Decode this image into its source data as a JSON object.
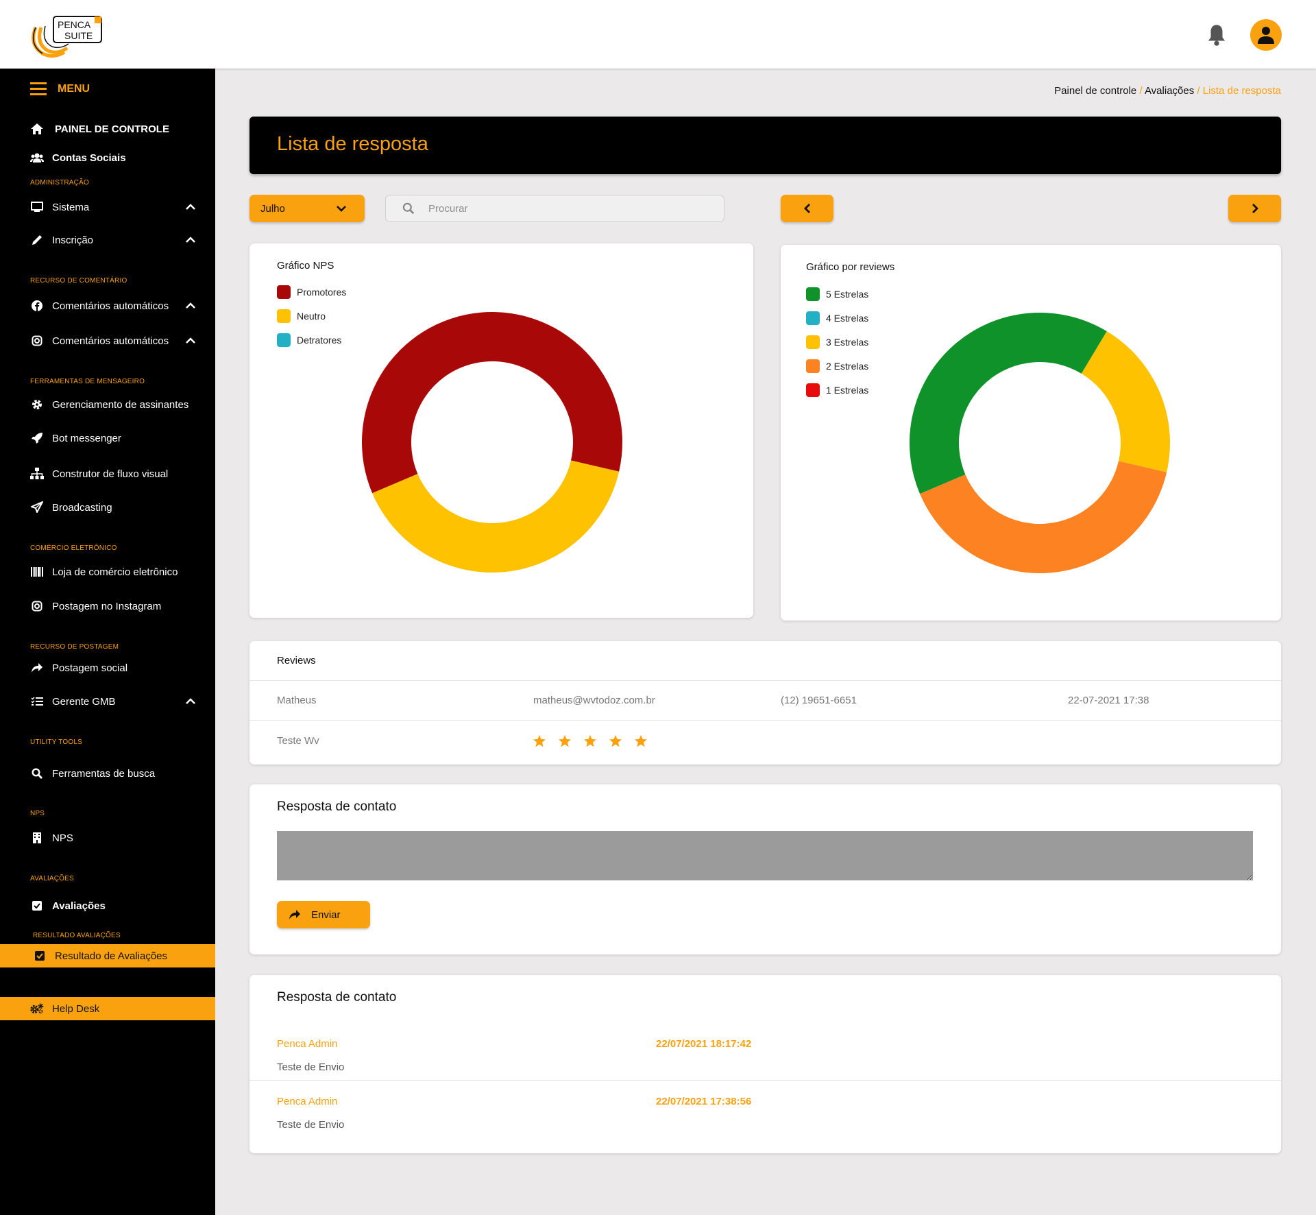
{
  "header": {
    "logo_text_top": "PENCA",
    "logo_text_bottom": "SUITE"
  },
  "sidebar": {
    "menu_label": "MENU",
    "items": [
      {
        "label": "PAINEL DE CONTROLE",
        "icon": "home-icon"
      },
      {
        "label": "Contas Sociais",
        "icon": "users-icon"
      },
      {
        "section": "ADMINISTRAÇÃO"
      },
      {
        "label": "Sistema",
        "icon": "monitor-icon"
      },
      {
        "label": "Inscrição",
        "icon": "pencil-icon"
      },
      {
        "section": "RECURSO DE COMENTÁRIO"
      },
      {
        "label": "Comentários automáticos",
        "icon": "facebook-icon"
      },
      {
        "label": "Comentários automáticos",
        "icon": "instagram-icon"
      },
      {
        "section": "FERRAMENTAS DE MENSAGEIRO"
      },
      {
        "label": "Gerenciamento de assinantes",
        "icon": "gear-icon"
      },
      {
        "label": "Bot messenger",
        "icon": "rocket-icon"
      },
      {
        "label": "Construtor de fluxo visual",
        "icon": "sitemap-icon"
      },
      {
        "label": "Broadcasting",
        "icon": "paper-plane-icon"
      },
      {
        "section": "COMÉRCIO ELETRÔNICO"
      },
      {
        "label": "Loja de comércio eletrônico",
        "icon": "barcode-icon"
      },
      {
        "label": "Postagem no Instagram",
        "icon": "instagram-icon"
      },
      {
        "section": "RECURSO DE POSTAGEM"
      },
      {
        "label": "Postagem social",
        "icon": "share-icon"
      },
      {
        "label": "Gerente GMB",
        "icon": "list-icon"
      },
      {
        "section": "UTILITY TOOLS"
      },
      {
        "label": "Ferramentas de busca",
        "icon": "search-icon"
      },
      {
        "section": "NPS"
      },
      {
        "label": "NPS",
        "icon": "building-icon"
      },
      {
        "section": "AVALIAÇÕES"
      },
      {
        "label": "Avaliações",
        "icon": "checkbox-icon"
      },
      {
        "section": "RESULTADO AVALIAÇÕES"
      },
      {
        "label": "Resultado de Avaliações",
        "icon": "checkbox-icon"
      },
      {
        "label": "Help Desk",
        "icon": "cogs-icon"
      }
    ]
  },
  "breadcrumb": {
    "items": [
      "Painel de controle",
      "Avaliações",
      "Lista de resposta"
    ],
    "separator": "/"
  },
  "page": {
    "title": "Lista de resposta"
  },
  "filters": {
    "month_selected": "Julho",
    "search_placeholder": "Procurar"
  },
  "colors": {
    "accent": "#f9a10e",
    "sidebar_bg": "#000000"
  },
  "chart_data": [
    {
      "type": "pie",
      "title": "Gráfico NPS",
      "donut": true,
      "legend_position": "top-left",
      "categories": [
        "Promotores",
        "Neutro",
        "Detratores"
      ],
      "values": [
        60,
        40,
        0
      ],
      "colors": [
        "#a90808",
        "#fec200",
        "#22b1c4"
      ]
    },
    {
      "type": "pie",
      "title": "Gráfico por reviews",
      "donut": true,
      "legend_position": "top-left",
      "categories": [
        "5 Estrelas",
        "4 Estrelas",
        "3 Estrelas",
        "2 Estrelas",
        "1 Estrelas"
      ],
      "values": [
        40,
        0,
        20,
        40,
        0
      ],
      "colors": [
        "#10922b",
        "#22b1c4",
        "#fec200",
        "#fd8221",
        "#e90b0b"
      ]
    }
  ],
  "reviews": {
    "title": "Reviews",
    "rows": [
      {
        "name": "Matheus",
        "email": "matheus@wvtodoz.com.br",
        "phone": "(12) 19651-6651",
        "date": "22-07-2021 17:38"
      },
      {
        "name": "Teste Wv",
        "stars": 5
      }
    ]
  },
  "reply_form": {
    "title": "Resposta de contato",
    "send_label": "Enviar"
  },
  "replies": {
    "title": "Resposta de contato",
    "items": [
      {
        "author": "Penca Admin",
        "date": "22/07/2021 18:17:42",
        "text": "Teste de Envio"
      },
      {
        "author": "Penca Admin",
        "date": "22/07/2021 17:38:56",
        "text": "Teste de Envio"
      }
    ]
  }
}
